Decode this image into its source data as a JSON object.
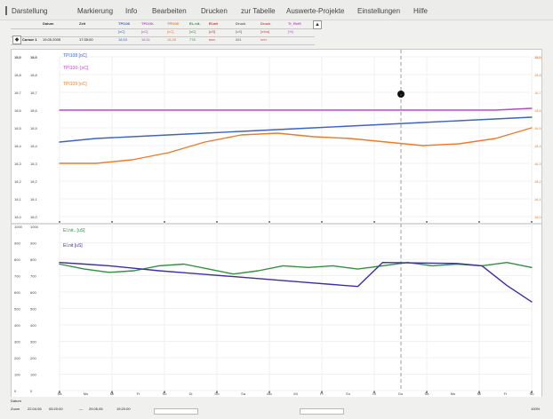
{
  "menu": {
    "items": [
      "Darstellung",
      "Markierung",
      "Info",
      "Bearbeiten",
      "Drucken",
      "zur Tabelle",
      "Auswerte-Projekte",
      "Einstellungen",
      "Hilfe"
    ]
  },
  "status": {
    "headers": [
      "",
      "Datum",
      "Zeit",
      "TPI108",
      "TPI100-",
      "TPI109",
      "EL.nit..",
      "EI.nit",
      "Druck",
      "Druck",
      "Tr_Reifi"
    ],
    "units": [
      "",
      "",
      "",
      "[oC]",
      "[oC]",
      "[oC]",
      "[oC]",
      "[uS]",
      "[uS]",
      "[mba]",
      "[%]"
    ],
    "cursor_label": "Cursor 1",
    "date": "19.05.2005",
    "time": "17:35:00",
    "values": [
      "18,53",
      "18,51",
      "18,46",
      "778",
      "nnn",
      "681",
      "nnn"
    ],
    "button_label": "▲"
  },
  "chart_data": [
    {
      "type": "line",
      "title": "",
      "xlabel": "",
      "ylabel": "",
      "ylim": [
        18.0,
        18.9
      ],
      "legend": [
        "TPI108 [oC]",
        "TPI100- [oC]",
        "TPI109 [oC]"
      ],
      "series": [
        {
          "name": "TPI108 [oC]",
          "color": "#3d63c8",
          "values": [
            18.42,
            18.44,
            18.45,
            18.46,
            18.47,
            18.48,
            18.49,
            18.5,
            18.51,
            18.52,
            18.53,
            18.54,
            18.55,
            18.56
          ]
        },
        {
          "name": "TPI100- [oC]",
          "color": "#b84bc7",
          "values": [
            18.6,
            18.6,
            18.6,
            18.6,
            18.6,
            18.6,
            18.6,
            18.6,
            18.6,
            18.6,
            18.6,
            18.6,
            18.6,
            18.61
          ]
        },
        {
          "name": "TPI109 [oC]",
          "color": "#f07a27",
          "values": [
            18.3,
            18.3,
            18.32,
            18.36,
            18.42,
            18.46,
            18.47,
            18.45,
            18.44,
            18.42,
            18.4,
            18.41,
            18.44,
            18.5
          ]
        }
      ],
      "yticks": [
        "18,0",
        "18,1",
        "18,2",
        "18,3",
        "18,4",
        "18,5",
        "18,6",
        "18,7",
        "18,8",
        "18,9",
        "11,0"
      ],
      "cursor": "●"
    },
    {
      "type": "line",
      "title": "",
      "xlabel": "",
      "ylabel": "",
      "ylim": [
        0,
        1000
      ],
      "legend": [
        "EI.nit.. [uS]",
        "EI.nit [uS]"
      ],
      "series": [
        {
          "name": "EI.nit.. [uS]",
          "color": "#2f913b",
          "values": [
            770,
            740,
            720,
            730,
            760,
            770,
            740,
            710,
            730,
            760,
            750,
            760,
            740,
            760,
            780,
            760,
            770,
            760,
            780,
            750
          ]
        },
        {
          "name": "EI.nit [uS]",
          "color": "#3a2fa7",
          "values": [
            780,
            770,
            760,
            745,
            730,
            718,
            706,
            694,
            682,
            670,
            658,
            646,
            634,
            780,
            778,
            776,
            774,
            760,
            640,
            540
          ]
        }
      ],
      "yticks": [
        "0",
        "100",
        "200",
        "300",
        "400",
        "500",
        "600",
        "700",
        "800",
        "900",
        "1000"
      ]
    }
  ],
  "footer": {
    "row1_label": "Datum",
    "row2_label": "Zoom",
    "start_date": "22.04.05",
    "start_time": "05:20:00",
    "end_label": "—",
    "end_date": "29.05.05",
    "end_time": "19:20:00",
    "days": [
      "Sa",
      "Mo",
      "Mi",
      "Fr",
      "So",
      "Di",
      "Do",
      "Sa",
      "Mo",
      "Mi",
      "Fr",
      "So",
      "Di",
      "Do",
      "Sa",
      "Mo",
      "Mi",
      "Fr",
      "So"
    ],
    "date_marks": [
      "25.04.05",
      "02.05.05",
      "09.05.05",
      "16.05.05",
      "23.05.05"
    ],
    "percent": "100%"
  }
}
